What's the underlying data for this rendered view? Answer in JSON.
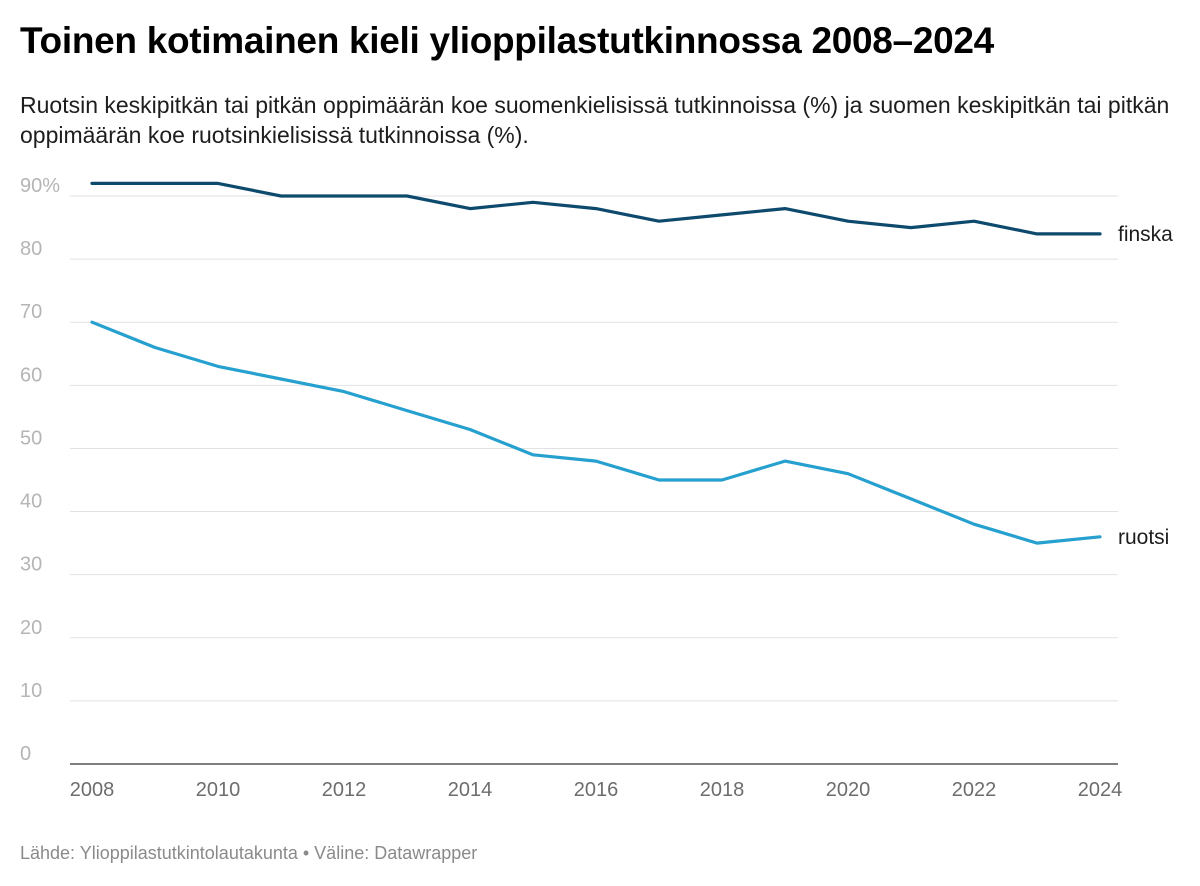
{
  "title": "Toinen kotimainen kieli ylioppilastutkinnossa 2008–2024",
  "subtitle": "Ruotsin keskipitkän tai pitkän oppimäärän koe suomenkielisissä tutkinnoissa (%) ja suomen keskipitkän tai pitkän oppimäärän koe ruotsinkielisissä tutkinnoissa (%).",
  "source": "Lähde: Ylioppilastutkintolautakunta • Väline: Datawrapper",
  "chart_data": {
    "type": "line",
    "x": [
      2008,
      2009,
      2010,
      2011,
      2012,
      2013,
      2014,
      2015,
      2016,
      2017,
      2018,
      2019,
      2020,
      2021,
      2022,
      2023,
      2024
    ],
    "xticks": [
      "2008",
      "2010",
      "2012",
      "2014",
      "2016",
      "2018",
      "2020",
      "2022",
      "2024"
    ],
    "yticks": [
      "0",
      "10",
      "20",
      "30",
      "40",
      "50",
      "60",
      "70",
      "80",
      "90%"
    ],
    "ylim": [
      0,
      90
    ],
    "grid": true,
    "series": [
      {
        "name": "finska",
        "color": "#0d4a6e",
        "values": [
          92,
          92,
          92,
          90,
          90,
          90,
          88,
          89,
          88,
          86,
          87,
          88,
          86,
          85,
          86,
          84,
          84
        ]
      },
      {
        "name": "ruotsi",
        "color": "#25a0cf",
        "values": [
          70,
          66,
          63,
          61,
          59,
          56,
          53,
          49,
          48,
          45,
          45,
          48,
          46,
          42,
          38,
          35,
          36
        ]
      }
    ]
  }
}
